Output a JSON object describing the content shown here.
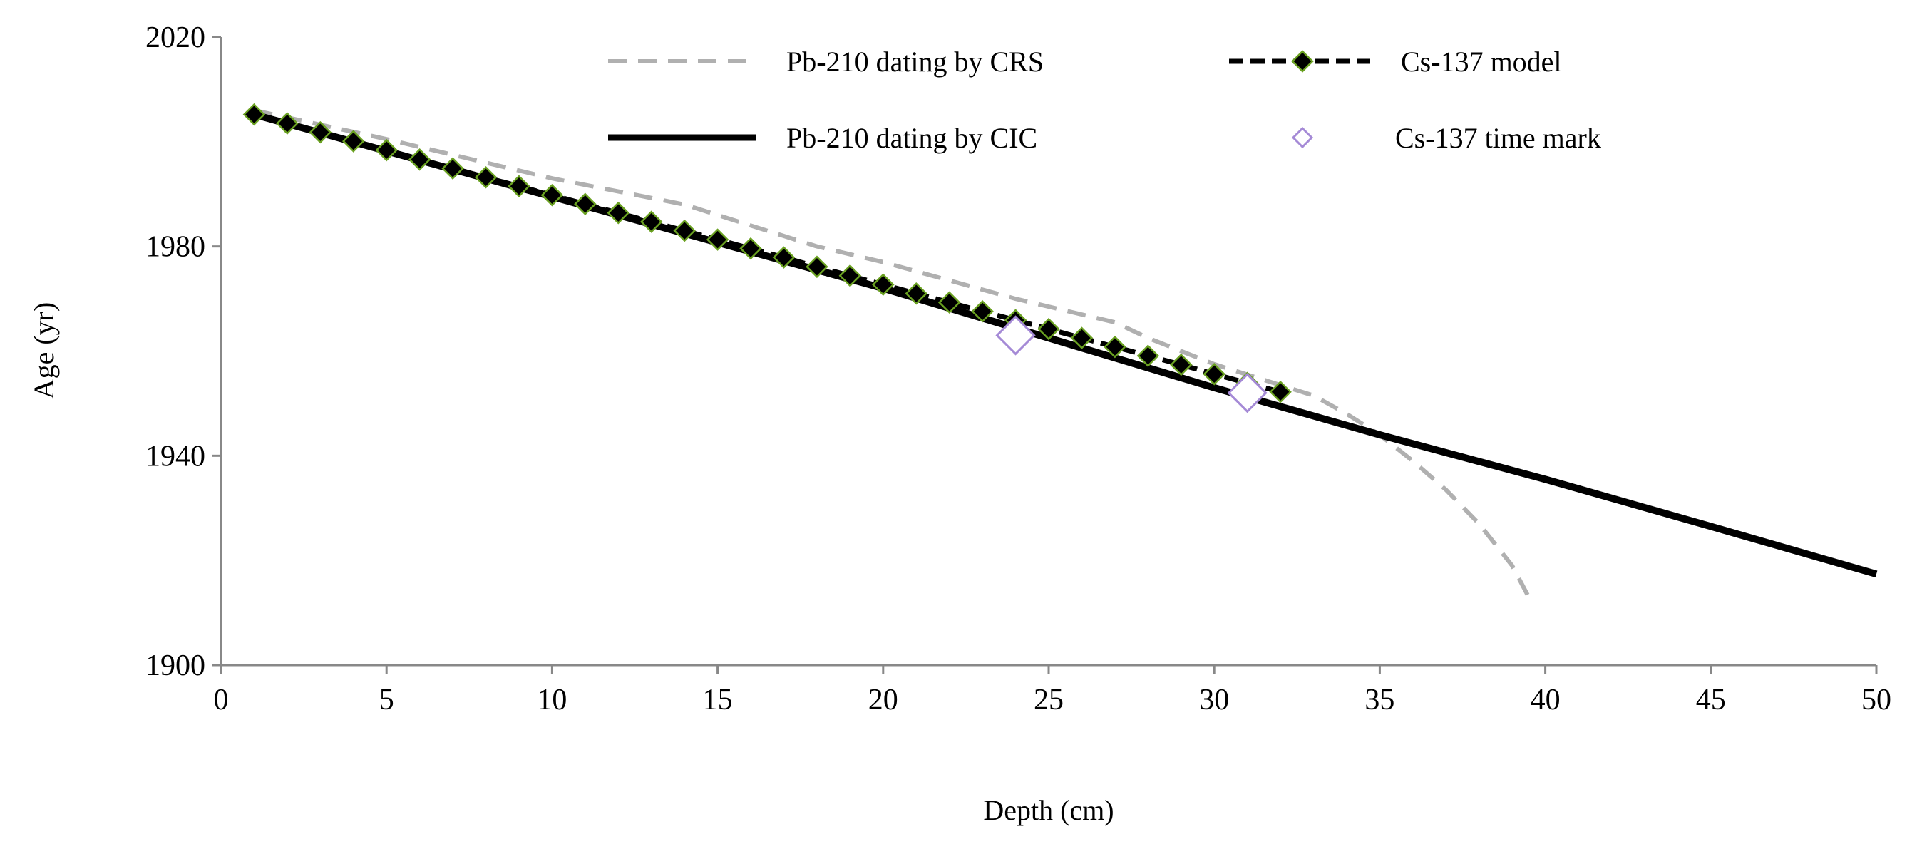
{
  "chart_data": {
    "type": "line",
    "title": "",
    "xlabel": "Depth (cm)",
    "ylabel": "Age (yr)",
    "xlim": [
      0,
      50
    ],
    "ylim": [
      1900,
      2020
    ],
    "xticks": [
      "0",
      "5",
      "10",
      "15",
      "20",
      "25",
      "30",
      "35",
      "40",
      "45",
      "50"
    ],
    "yticks": [
      "1900",
      "1940",
      "1980",
      "2020"
    ],
    "grid": false,
    "legend_placement": "top",
    "series": [
      {
        "name": "Pb-210 dating by CRS",
        "style": "dashed",
        "color": "#b0b0b0",
        "x": [
          1,
          5,
          10,
          14,
          16,
          18,
          20,
          22,
          24,
          26,
          27,
          28,
          30,
          32,
          33,
          34,
          35,
          36,
          37,
          38,
          39,
          39.5
        ],
        "y": [
          2006,
          2000.5,
          1993,
          1988,
          1984,
          1980,
          1977,
          1973.5,
          1970,
          1967,
          1965.5,
          1962.5,
          1957.5,
          1953.5,
          1951.5,
          1948,
          1944,
          1939,
          1933.5,
          1927,
          1919,
          1913
        ]
      },
      {
        "name": "Pb-210 dating by CIC",
        "style": "solid",
        "color": "#000000",
        "x": [
          1,
          10,
          20,
          30,
          35,
          40,
          45,
          50
        ],
        "y": [
          2005.2,
          1989.5,
          1972,
          1953,
          1944,
          1935.5,
          1926.5,
          1917.4
        ]
      },
      {
        "name": "Cs-137 model",
        "style": "dashed-diamond",
        "color": "#000000",
        "marker_edge": "#6aa121",
        "x": [
          1,
          2,
          3,
          4,
          5,
          6,
          7,
          8,
          9,
          10,
          11,
          12,
          13,
          14,
          15,
          16,
          17,
          18,
          19,
          20,
          21,
          22,
          23,
          24,
          25,
          26,
          27,
          28,
          29,
          30,
          31,
          32
        ],
        "y": [
          2005.2,
          2003.5,
          2001.8,
          2000.1,
          1998.4,
          1996.6,
          1994.9,
          1993.2,
          1991.5,
          1989.8,
          1988.1,
          1986.4,
          1984.7,
          1983,
          1981.3,
          1979.6,
          1977.9,
          1976.1,
          1974.4,
          1972.7,
          1971,
          1969.3,
          1967.6,
          1965.9,
          1964.2,
          1962.5,
          1960.8,
          1959.1,
          1957.4,
          1955.6,
          1953.9,
          1952.2
        ]
      },
      {
        "name": "Cs-137 time mark",
        "style": "hollow-diamond",
        "color": "#a58ad6",
        "x": [
          24,
          31
        ],
        "y": [
          1963,
          1952
        ]
      }
    ]
  }
}
